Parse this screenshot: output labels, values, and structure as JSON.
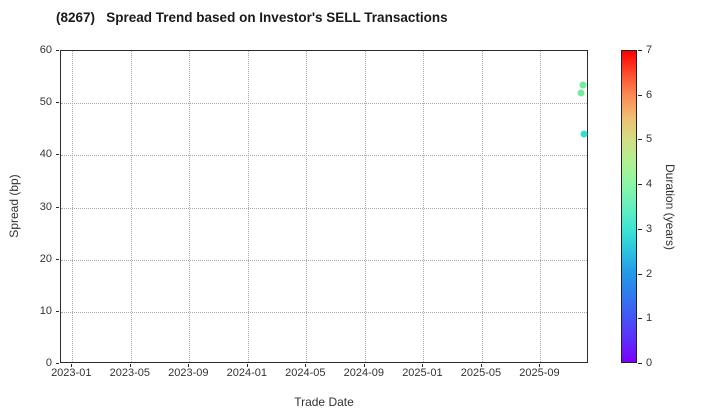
{
  "title": "(8267)   Spread Trend based on Investor's SELL Transactions",
  "axes": {
    "x_label": "Trade Date",
    "y_label": "Spread (bp)"
  },
  "colorbar": {
    "label": "Duration (years)",
    "min": 0,
    "max": 7,
    "tick_values": [
      0,
      1,
      2,
      3,
      4,
      5,
      6,
      7
    ],
    "gradient_stops": [
      {
        "value": 0.0,
        "color": "#7c00fe"
      },
      {
        "value": 0.5,
        "color": "#5e2efb"
      },
      {
        "value": 1.0,
        "color": "#4355f3"
      },
      {
        "value": 1.5,
        "color": "#2f7aee"
      },
      {
        "value": 2.0,
        "color": "#239ae6"
      },
      {
        "value": 2.5,
        "color": "#2cc4df"
      },
      {
        "value": 3.0,
        "color": "#3fe5d3"
      },
      {
        "value": 3.5,
        "color": "#66efbd"
      },
      {
        "value": 4.0,
        "color": "#8cf6a4"
      },
      {
        "value": 4.5,
        "color": "#b0f192"
      },
      {
        "value": 5.0,
        "color": "#d2de85"
      },
      {
        "value": 5.5,
        "color": "#efbe73"
      },
      {
        "value": 6.0,
        "color": "#fb8b55"
      },
      {
        "value": 6.5,
        "color": "#fe4a2b"
      },
      {
        "value": 7.0,
        "color": "#fe0000"
      }
    ]
  },
  "chart_data": {
    "type": "scatter",
    "title": "(8267)   Spread Trend based on Investor's SELL Transactions",
    "xlabel": "Trade Date",
    "ylabel": "Spread (bp)",
    "ylim": [
      0,
      60
    ],
    "y_tick_values": [
      0,
      10,
      20,
      30,
      40,
      50,
      60
    ],
    "x_tick_labels": [
      "2023-01",
      "2023-05",
      "2023-09",
      "2024-01",
      "2024-05",
      "2024-09",
      "2025-01",
      "2025-05",
      "2025-09"
    ],
    "x_months_per_tick": 4,
    "xlim_months_rel_first_tick": [
      -0.77,
      35.32
    ],
    "grid": true,
    "legend_position": "colorbar-right",
    "colorbar_label": "Duration (years)",
    "colorbar_range": [
      0,
      7
    ],
    "points": [
      {
        "date": "2025-11-24",
        "spread_bp": 52.0,
        "duration_years": 3.8,
        "color": "#74ec9f"
      },
      {
        "date": "2025-11-29",
        "spread_bp": 53.4,
        "duration_years": 3.8,
        "color": "#74ec9f"
      },
      {
        "date": "2025-11-30",
        "spread_bp": 44.1,
        "duration_years": 2.9,
        "color": "#35dfcd"
      }
    ]
  }
}
